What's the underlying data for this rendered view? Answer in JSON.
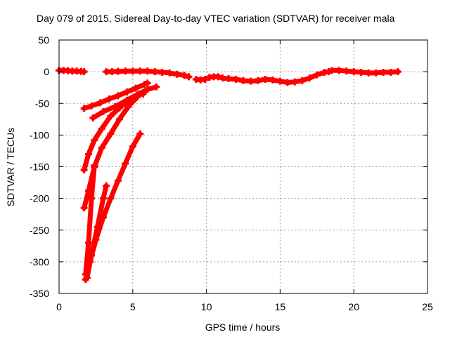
{
  "chart_data": {
    "type": "scatter",
    "title": "Day 079 of 2015, Sidereal Day-to-day VTEC variation (SDTVAR) for receiver mala",
    "xlabel": "GPS time / hours",
    "ylabel": "SDTVAR / TECUs",
    "xlim": [
      0,
      25
    ],
    "ylim": [
      -350,
      50
    ],
    "xticks": [
      0,
      5,
      10,
      15,
      20,
      25
    ],
    "yticks": [
      50,
      0,
      -50,
      -100,
      -150,
      -200,
      -250,
      -300,
      -350
    ],
    "xtick_labels": [
      "0",
      "5",
      "10",
      "15",
      "20",
      "25"
    ],
    "ytick_labels": [
      "50",
      "0",
      "-50",
      "-100",
      "-150",
      "-200",
      "-250",
      "-300",
      "-350"
    ],
    "grid": true,
    "color": "#ff0000",
    "series": [
      {
        "x": [
          0.0,
          0.3,
          0.6,
          0.9,
          1.2,
          1.5,
          1.7
        ],
        "y": [
          2,
          2,
          1.5,
          1,
          1,
          0.5,
          0
        ]
      },
      {
        "x": [
          3.2,
          3.6,
          4.0,
          4.5,
          5.0,
          5.5,
          6.0,
          6.5,
          7.0,
          7.5,
          8.0,
          8.5,
          8.8
        ],
        "y": [
          0,
          0,
          0.5,
          1,
          1,
          1,
          1,
          0,
          -1,
          -2,
          -4,
          -6,
          -8
        ]
      },
      {
        "x": [
          9.3,
          9.6,
          9.9,
          10.2,
          10.5,
          10.8,
          11.1,
          11.5,
          12.0,
          12.5,
          13.0,
          13.5,
          14.0,
          14.5,
          15.0,
          15.5,
          16.0,
          16.5,
          17.0,
          17.5,
          18.0,
          18.3
        ],
        "y": [
          -12,
          -13,
          -12,
          -9,
          -8,
          -8,
          -10,
          -11,
          -12,
          -14,
          -15,
          -14,
          -12,
          -13,
          -15,
          -17,
          -16,
          -14,
          -10,
          -5,
          -1,
          0
        ]
      },
      {
        "x": [
          18.5,
          19.0,
          19.5,
          20.0,
          20.5,
          21.0,
          21.5,
          22.0,
          22.5,
          23.0
        ],
        "y": [
          2,
          2,
          1,
          0,
          -1,
          -2,
          -2,
          -1,
          -1,
          0
        ]
      },
      {
        "x": [
          1.7,
          2.2,
          2.8,
          3.4,
          4.0,
          4.6,
          5.2,
          5.8,
          6.0
        ],
        "y": [
          -58,
          -54,
          -49,
          -43,
          -38,
          -32,
          -26,
          -20,
          -18
        ]
      },
      {
        "x": [
          2.3,
          3.0,
          3.8,
          4.6,
          5.4,
          6.0,
          6.6
        ],
        "y": [
          -73,
          -63,
          -55,
          -45,
          -35,
          -28,
          -24
        ]
      },
      {
        "x": [
          1.7,
          2.0,
          2.4,
          2.9,
          3.5,
          4.1,
          4.7,
          5.3,
          5.7
        ],
        "y": [
          -155,
          -130,
          -108,
          -90,
          -70,
          -57,
          -45,
          -37,
          -35
        ]
      },
      {
        "x": [
          1.7,
          2.0,
          2.4,
          2.9,
          3.5,
          4.1,
          4.7,
          5.3
        ],
        "y": [
          -215,
          -188,
          -150,
          -120,
          -98,
          -75,
          -55,
          -40
        ]
      },
      {
        "x": [
          1.8,
          2.1,
          2.5,
          3.0,
          3.5,
          4.0,
          4.5,
          5.0,
          5.5
        ],
        "y": [
          -328,
          -300,
          -265,
          -230,
          -200,
          -172,
          -145,
          -118,
          -98
        ]
      },
      {
        "x": [
          1.8,
          2.0,
          2.2,
          2.4
        ],
        "y": [
          -320,
          -270,
          -200,
          -148
        ]
      },
      {
        "x": [
          1.9,
          2.2,
          2.6,
          3.0,
          3.2
        ],
        "y": [
          -325,
          -290,
          -245,
          -200,
          -180
        ]
      }
    ]
  }
}
